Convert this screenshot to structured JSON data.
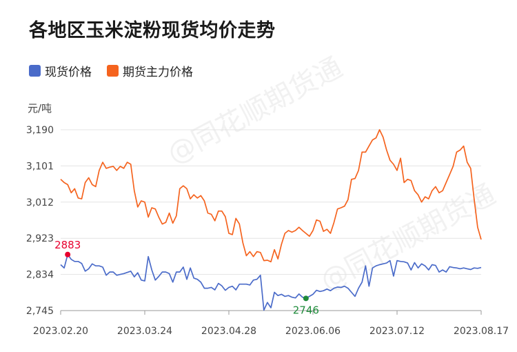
{
  "title": "各地区玉米淀粉现货均价走势",
  "unit_label": "元/吨",
  "watermark": "@同花顺期货通",
  "chart_data": {
    "type": "line",
    "title": "各地区玉米淀粉现货均价走势",
    "ylabel": "元/吨",
    "ylim": [
      2745,
      3190
    ],
    "yticks": [
      "2,745",
      "2,834",
      "2,923",
      "3,012",
      "3,101",
      "3,190"
    ],
    "ytick_values": [
      2745,
      2834,
      2923,
      3012,
      3101,
      3190
    ],
    "xticks": [
      "2023.02.20",
      "2023.03.24",
      "2023.04.28",
      "2023.06.06",
      "2023.07.12",
      "2023.08.17"
    ],
    "legend_position": "top-left",
    "grid": "horizontal",
    "annotations": [
      {
        "label": "2883",
        "series": "现货价格",
        "index": 2,
        "color": "#e8002e"
      },
      {
        "label": "2746",
        "series": "现货价格",
        "index": 70,
        "color": "#1e8b3a"
      }
    ],
    "series": [
      {
        "name": "现货价格",
        "color": "#4a6bc9",
        "values": [
          2858,
          2850,
          2883,
          2871,
          2866,
          2866,
          2861,
          2842,
          2848,
          2860,
          2855,
          2855,
          2852,
          2832,
          2840,
          2840,
          2832,
          2834,
          2836,
          2839,
          2842,
          2828,
          2838,
          2820,
          2818,
          2878,
          2845,
          2820,
          2829,
          2840,
          2840,
          2836,
          2815,
          2840,
          2840,
          2852,
          2822,
          2850,
          2825,
          2822,
          2815,
          2800,
          2800,
          2802,
          2796,
          2812,
          2806,
          2795,
          2802,
          2805,
          2796,
          2810,
          2810,
          2810,
          2808,
          2820,
          2822,
          2832,
          2746,
          2765,
          2752,
          2790,
          2782,
          2785,
          2780,
          2782,
          2778,
          2776,
          2786,
          2778,
          2775,
          2780,
          2785,
          2795,
          2792,
          2794,
          2798,
          2794,
          2800,
          2803,
          2802,
          2805,
          2800,
          2790,
          2780,
          2800,
          2815,
          2855,
          2805,
          2850,
          2855,
          2858,
          2860,
          2862,
          2868,
          2830,
          2868,
          2866,
          2865,
          2862,
          2845,
          2863,
          2850,
          2860,
          2855,
          2845,
          2858,
          2856,
          2840,
          2845,
          2840,
          2853,
          2851,
          2850,
          2848,
          2850,
          2848,
          2846,
          2850,
          2849,
          2851
        ]
      },
      {
        "name": "期货主力价格",
        "color": "#f5631e",
        "values": [
          3068,
          3060,
          3055,
          3035,
          3045,
          3022,
          3020,
          3060,
          3072,
          3055,
          3050,
          3090,
          3110,
          3095,
          3098,
          3100,
          3090,
          3100,
          3095,
          3110,
          3105,
          3040,
          3000,
          3015,
          3012,
          2975,
          2998,
          2995,
          2975,
          2958,
          2962,
          2985,
          2960,
          2978,
          3045,
          3052,
          3045,
          3020,
          3030,
          3022,
          3028,
          3015,
          2985,
          2982,
          2966,
          2990,
          2990,
          2976,
          2935,
          2932,
          2972,
          2958,
          2912,
          2880,
          2890,
          2878,
          2890,
          2888,
          2868,
          2869,
          2865,
          2895,
          2872,
          2908,
          2935,
          2942,
          2938,
          2942,
          2950,
          2942,
          2935,
          2928,
          2942,
          2968,
          2965,
          2940,
          2945,
          2935,
          2962,
          2995,
          2998,
          3002,
          3018,
          3068,
          3070,
          3090,
          3135,
          3135,
          3150,
          3165,
          3170,
          3190,
          3172,
          3140,
          3115,
          3105,
          3090,
          3120,
          3060,
          3068,
          3065,
          3040,
          3030,
          3012,
          3025,
          3020,
          3040,
          3050,
          3035,
          3040,
          3060,
          3080,
          3100,
          3135,
          3140,
          3150,
          3110,
          3095,
          3020,
          2950,
          2920
        ]
      }
    ]
  }
}
